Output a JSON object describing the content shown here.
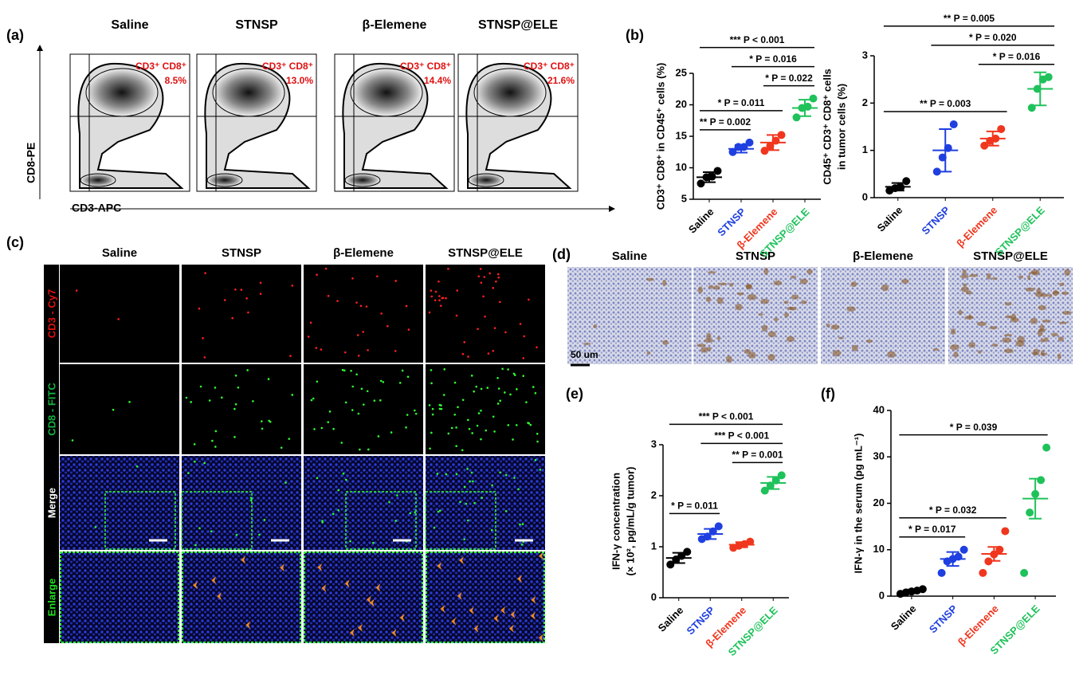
{
  "panel_labels": [
    "(a)",
    "(b)",
    "(c)",
    "(d)",
    "(e)",
    "(f)"
  ],
  "flow": {
    "groups": [
      "Saline",
      "STNSP",
      "β-Elemene",
      "STNSP@ELE"
    ],
    "gate_label": "CD3⁺ CD8⁺",
    "percentages": [
      "8.5%",
      "13.0%",
      "14.4%",
      "21.6%"
    ],
    "y_axis": "CD8-PE",
    "x_axis": "CD3-APC"
  },
  "fluorescence": {
    "groups": [
      "Saline",
      "STNSP",
      "β-Elemene",
      "STNSP@ELE"
    ],
    "rows": [
      "CD3 - Cy7",
      "CD8 - FITC",
      "Merge",
      "Enlarge"
    ]
  },
  "ihc": {
    "groups": [
      "Saline",
      "STNSP",
      "β-Elemene",
      "STNSP@ELE"
    ],
    "scale_bar": "50 um"
  },
  "chart_data": [
    {
      "type": "dot",
      "ylabel": [
        "CD3⁺ CD8⁺ in CD45⁺ cells (%)"
      ],
      "categories": [
        "Saline",
        "STNSP",
        "β-Elemene",
        "STNSP@ELE"
      ],
      "colors": [
        "#000000",
        "#1f3fe0",
        "#f0361e",
        "#1fc25a"
      ],
      "points": [
        [
          7.5,
          8.5,
          8.6,
          9.5
        ],
        [
          12.5,
          13.3,
          13.3,
          14.0
        ],
        [
          12.7,
          13.5,
          14.3,
          15.2
        ],
        [
          18.0,
          19.5,
          19.7,
          21.0
        ]
      ],
      "mean": [
        8.5,
        13.0,
        14.0,
        19.5
      ],
      "error": [
        0.8,
        0.6,
        1.2,
        1.3
      ],
      "ylim": [
        5,
        25
      ],
      "yticks": [
        5,
        10,
        15,
        20,
        25
      ],
      "annotations": [
        {
          "span": [
            0,
            1
          ],
          "text": "** P = 0.002"
        },
        {
          "span": [
            0,
            2
          ],
          "text": "* P = 0.011"
        },
        {
          "span": [
            2,
            3
          ],
          "text": "* P = 0.022"
        },
        {
          "span": [
            1,
            3
          ],
          "text": "* P = 0.016"
        },
        {
          "span": [
            0,
            3
          ],
          "text": "*** P < 0.001"
        }
      ]
    },
    {
      "type": "dot",
      "ylabel": [
        "CD45⁺ CD3⁺ CD8⁺ cells",
        "in tumor cells (%)"
      ],
      "categories": [
        "Saline",
        "STNSP",
        "β-Elemene",
        "STNSP@ELE"
      ],
      "colors": [
        "#000000",
        "#1f3fe0",
        "#f0361e",
        "#1fc25a"
      ],
      "points": [
        [
          0.15,
          0.2,
          0.22,
          0.35
        ],
        [
          0.55,
          0.85,
          1.05,
          1.55
        ],
        [
          1.1,
          1.2,
          1.25,
          1.45
        ],
        [
          1.9,
          2.3,
          2.5,
          2.55
        ]
      ],
      "mean": [
        0.23,
        1.0,
        1.25,
        2.3
      ],
      "error": [
        0.08,
        0.45,
        0.15,
        0.35
      ],
      "ylim": [
        0,
        3
      ],
      "yticks": [
        0,
        1,
        2,
        3
      ],
      "annotations": [
        {
          "span": [
            0,
            2
          ],
          "text": "** P = 0.003"
        },
        {
          "span": [
            2,
            3
          ],
          "text": "* P = 0.016"
        },
        {
          "span": [
            1,
            3
          ],
          "text": "* P = 0.020"
        },
        {
          "span": [
            0,
            3
          ],
          "text": "** P = 0.005"
        }
      ]
    },
    {
      "type": "dot",
      "ylabel": [
        "IFN-γ concentration",
        "(× 10², pg/mL/g tumor)"
      ],
      "categories": [
        "Saline",
        "STNSP",
        "β-Elemene",
        "STNSP@ELE"
      ],
      "colors": [
        "#000000",
        "#1f3fe0",
        "#f0361e",
        "#1fc25a"
      ],
      "points": [
        [
          0.65,
          0.75,
          0.82,
          0.9
        ],
        [
          1.15,
          1.2,
          1.3,
          1.4
        ],
        [
          0.98,
          1.02,
          1.05,
          1.1
        ],
        [
          2.1,
          2.2,
          2.3,
          2.4
        ]
      ],
      "mean": [
        0.78,
        1.25,
        1.04,
        2.25
      ],
      "error": [
        0.1,
        0.1,
        0.05,
        0.12
      ],
      "ylim": [
        0,
        3
      ],
      "yticks": [
        0,
        1,
        2,
        3
      ],
      "annotations": [
        {
          "span": [
            0,
            1
          ],
          "text": "* P = 0.011"
        },
        {
          "span": [
            2,
            3
          ],
          "text": "** P = 0.001"
        },
        {
          "span": [
            1,
            3
          ],
          "text": "*** P < 0.001"
        },
        {
          "span": [
            0,
            3
          ],
          "text": "*** P < 0.001"
        }
      ]
    },
    {
      "type": "dot",
      "ylabel": [
        "IFN-γ in the serum (pg mL⁻¹)"
      ],
      "categories": [
        "Saline",
        "STNSP",
        "β-Elemene",
        "STNSP@ELE"
      ],
      "colors": [
        "#000000",
        "#1f3fe0",
        "#f0361e",
        "#1fc25a"
      ],
      "points": [
        [
          0.5,
          0.8,
          1.0,
          1.2,
          1.5
        ],
        [
          5,
          7.5,
          8,
          8.5,
          10
        ],
        [
          5,
          7.5,
          9,
          10,
          14
        ],
        [
          5,
          18,
          22,
          25,
          32
        ]
      ],
      "mean": [
        1.0,
        8.0,
        9.1,
        21.0
      ],
      "error": [
        0.4,
        1.5,
        1.5,
        4.3
      ],
      "ylim": [
        0,
        40
      ],
      "yticks": [
        0,
        10,
        20,
        30,
        40
      ],
      "annotations": [
        {
          "span": [
            0,
            1
          ],
          "text": "* P = 0.017"
        },
        {
          "span": [
            0,
            2
          ],
          "text": "* P = 0.032"
        },
        {
          "span": [
            0,
            3
          ],
          "text": "* P = 0.039"
        }
      ]
    }
  ]
}
